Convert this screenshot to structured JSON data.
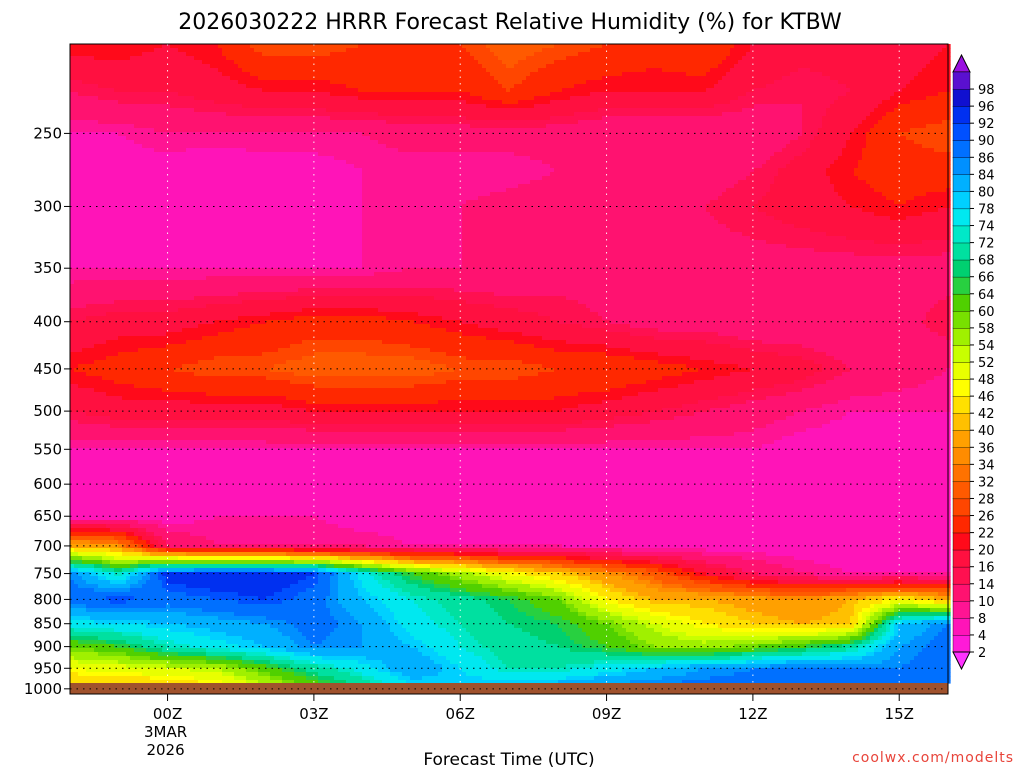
{
  "title": "2026030222 HRRR Forecast Relative Humidity (%) for KTBW",
  "credit": "coolwx.com/modelts",
  "chart_data": {
    "type": "heatmap",
    "title": "2026030222 HRRR Forecast Relative Humidity (%) for KTBW",
    "xlabel": "Forecast Time (UTC)",
    "ylabel": "",
    "x_ticks": [
      {
        "hour": 0,
        "label": "00Z",
        "sub1": "3MAR",
        "sub2": "2026"
      },
      {
        "hour": 3,
        "label": "03Z"
      },
      {
        "hour": 6,
        "label": "06Z"
      },
      {
        "hour": 9,
        "label": "09Z"
      },
      {
        "hour": 12,
        "label": "12Z"
      },
      {
        "hour": 15,
        "label": "15Z"
      }
    ],
    "x_range_hours": [
      -2,
      16
    ],
    "y_ticks": [
      250,
      300,
      350,
      400,
      450,
      500,
      550,
      600,
      650,
      700,
      750,
      800,
      850,
      900,
      950,
      1000
    ],
    "y_range_hpa": [
      200,
      1013
    ],
    "log_y": true,
    "grid": "dotted",
    "hours": [
      -2,
      -1,
      0,
      1,
      2,
      3,
      4,
      5,
      6,
      7,
      8,
      9,
      10,
      11,
      12,
      13,
      14,
      15,
      16
    ],
    "levels": [
      200,
      225,
      250,
      275,
      300,
      350,
      400,
      450,
      500,
      550,
      600,
      650,
      700,
      750,
      800,
      850,
      900,
      950,
      1000
    ],
    "rh": [
      [
        22,
        22,
        20,
        22,
        28,
        28,
        26,
        26,
        26,
        30,
        28,
        26,
        24,
        26,
        20,
        18,
        18,
        18,
        20
      ],
      [
        14,
        16,
        16,
        18,
        20,
        20,
        22,
        22,
        22,
        26,
        22,
        20,
        20,
        20,
        16,
        14,
        16,
        20,
        22
      ],
      [
        8,
        8,
        10,
        10,
        10,
        10,
        10,
        12,
        12,
        12,
        12,
        10,
        10,
        10,
        10,
        14,
        20,
        26,
        28
      ],
      [
        6,
        6,
        6,
        4,
        6,
        6,
        8,
        8,
        8,
        8,
        10,
        10,
        10,
        12,
        14,
        18,
        22,
        24,
        24
      ],
      [
        6,
        6,
        6,
        4,
        4,
        6,
        8,
        8,
        10,
        12,
        14,
        14,
        14,
        14,
        16,
        18,
        20,
        22,
        20
      ],
      [
        8,
        8,
        8,
        8,
        8,
        8,
        8,
        10,
        10,
        10,
        12,
        12,
        12,
        12,
        12,
        12,
        12,
        12,
        12
      ],
      [
        16,
        18,
        18,
        20,
        22,
        24,
        24,
        22,
        20,
        18,
        16,
        14,
        12,
        12,
        10,
        10,
        10,
        12,
        16
      ],
      [
        22,
        24,
        26,
        28,
        28,
        30,
        30,
        30,
        28,
        28,
        26,
        26,
        24,
        22,
        20,
        18,
        14,
        12,
        10
      ],
      [
        16,
        18,
        18,
        18,
        18,
        20,
        20,
        20,
        20,
        20,
        20,
        18,
        16,
        14,
        12,
        10,
        8,
        8,
        8
      ],
      [
        8,
        8,
        8,
        8,
        8,
        8,
        8,
        8,
        8,
        8,
        8,
        8,
        8,
        8,
        8,
        6,
        6,
        6,
        6
      ],
      [
        6,
        6,
        6,
        4,
        4,
        6,
        6,
        4,
        6,
        6,
        6,
        6,
        6,
        6,
        6,
        6,
        6,
        4,
        4
      ],
      [
        6,
        6,
        6,
        8,
        8,
        8,
        6,
        6,
        6,
        6,
        6,
        6,
        6,
        6,
        6,
        6,
        6,
        6,
        6
      ],
      [
        40,
        36,
        14,
        10,
        10,
        10,
        10,
        8,
        8,
        8,
        8,
        6,
        6,
        6,
        6,
        6,
        6,
        6,
        6
      ],
      [
        86,
        72,
        94,
        96,
        96,
        92,
        76,
        64,
        56,
        48,
        42,
        36,
        30,
        20,
        14,
        10,
        8,
        8,
        8
      ],
      [
        88,
        92,
        88,
        90,
        92,
        88,
        80,
        74,
        70,
        66,
        60,
        46,
        40,
        40,
        38,
        36,
        40,
        46,
        40
      ],
      [
        76,
        78,
        80,
        82,
        84,
        88,
        84,
        76,
        72,
        68,
        66,
        60,
        52,
        46,
        42,
        40,
        42,
        80,
        86
      ],
      [
        60,
        64,
        72,
        76,
        80,
        86,
        84,
        80,
        74,
        70,
        68,
        64,
        58,
        56,
        60,
        64,
        70,
        84,
        88
      ],
      [
        48,
        50,
        52,
        54,
        62,
        70,
        76,
        84,
        78,
        72,
        72,
        76,
        80,
        84,
        86,
        88,
        86,
        86,
        88
      ],
      [
        40,
        40,
        40,
        44,
        52,
        60,
        68,
        76,
        80,
        82,
        84,
        86,
        88,
        88,
        88,
        88,
        88,
        88,
        88
      ]
    ],
    "colorbar_levels": [
      2,
      4,
      8,
      10,
      14,
      16,
      20,
      22,
      26,
      28,
      32,
      34,
      36,
      40,
      42,
      46,
      48,
      52,
      54,
      58,
      60,
      64,
      66,
      68,
      72,
      74,
      78,
      80,
      84,
      86,
      90,
      92,
      96,
      98
    ],
    "colorbar_colors": [
      "#ff33ff",
      "#ff1ad8",
      "#ff14b8",
      "#ff1493",
      "#ff1270",
      "#ff1050",
      "#ff1040",
      "#ff0a1a",
      "#ff2800",
      "#ff4600",
      "#ff5a00",
      "#ff7200",
      "#ff8c00",
      "#ffa000",
      "#ffc000",
      "#ffe000",
      "#ffff00",
      "#e8ff00",
      "#c8ff00",
      "#a0f000",
      "#78e000",
      "#50d000",
      "#28d040",
      "#00d070",
      "#00e0a0",
      "#00e8c8",
      "#00e8f0",
      "#00d0ff",
      "#00b0ff",
      "#0090ff",
      "#0070ff",
      "#0050ff",
      "#0030f0",
      "#1010d0",
      "#5a10d0",
      "#9a10e0"
    ],
    "terrain_color": "#a0522d"
  }
}
